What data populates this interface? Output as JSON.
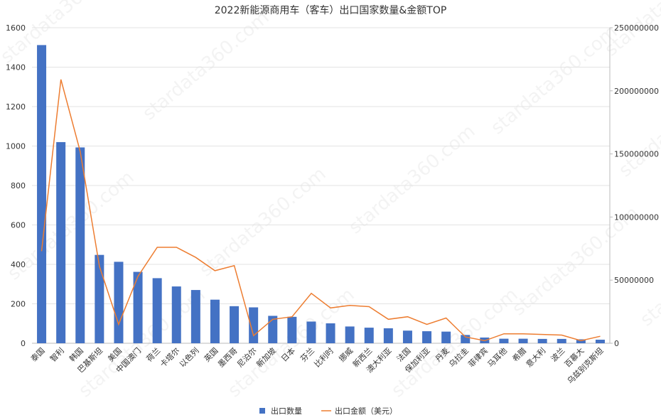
{
  "chart_data": {
    "type": "bar",
    "title": "2022新能源商用车（客车）出口国家数量&金额TOP",
    "categories": [
      "泰国",
      "智利",
      "韩国",
      "巴基斯坦",
      "美国",
      "中国澳门",
      "荷兰",
      "卡塔尔",
      "以色列",
      "英国",
      "墨西哥",
      "尼泊尔",
      "新加坡",
      "日本",
      "芬兰",
      "比利时",
      "挪威",
      "新西兰",
      "澳大利亚",
      "法国",
      "保加利亚",
      "丹麦",
      "乌拉圭",
      "菲律宾",
      "马耳他",
      "希腊",
      "意大利",
      "波兰",
      "百慕大",
      "乌兹别克斯坦"
    ],
    "series": [
      {
        "name": "出口数量",
        "axis": "left",
        "render": "bar",
        "color": "#4472c4",
        "values": [
          1512,
          1020,
          993,
          448,
          413,
          362,
          330,
          288,
          270,
          221,
          188,
          182,
          139,
          134,
          110,
          101,
          85,
          79,
          76,
          64,
          61,
          59,
          42,
          29,
          23,
          23,
          22,
          22,
          20,
          18
        ]
      },
      {
        "name": "出口金额（美元）",
        "axis": "right",
        "render": "line",
        "color": "#ed7d31",
        "values": [
          73000000,
          209000000,
          152000000,
          61000000,
          15000000,
          53000000,
          76000000,
          76000000,
          68000000,
          57500000,
          61500000,
          6000000,
          19000000,
          21000000,
          39500000,
          28000000,
          30000000,
          29000000,
          19000000,
          21000000,
          15000000,
          20000000,
          5000000,
          2000000,
          7500000,
          7500000,
          7000000,
          6500000,
          2000000,
          5500000
        ]
      }
    ],
    "y_left": {
      "min": 0,
      "max": 1600,
      "ticks": [
        "0",
        "200",
        "400",
        "600",
        "800",
        "1000",
        "1200",
        "1400",
        "1600"
      ]
    },
    "y_right": {
      "min": 0,
      "max": 250000000,
      "ticks": [
        "0",
        "50000000",
        "100000000",
        "150000000",
        "200000000",
        "250000000"
      ]
    },
    "grid": true,
    "legend_position": "bottom-center"
  },
  "watermark_text": "stardata360.com"
}
